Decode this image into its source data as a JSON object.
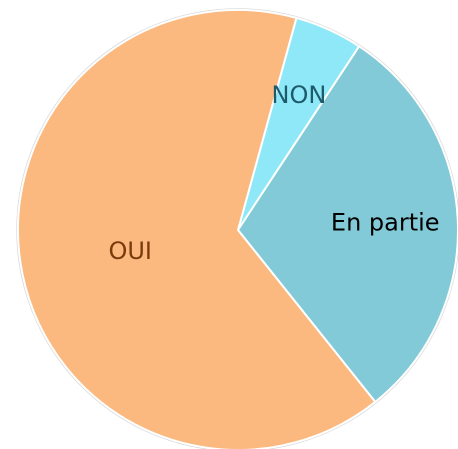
{
  "chart_data": {
    "type": "pie",
    "categories": [
      "NON",
      "En partie",
      "OUI"
    ],
    "values": [
      5,
      30,
      65
    ],
    "colors": [
      "#8fe8f8",
      "#82cad7",
      "#fbb97f"
    ],
    "label_colors": [
      "#1d5a6b",
      "#000000",
      "#7a3b0c"
    ]
  }
}
